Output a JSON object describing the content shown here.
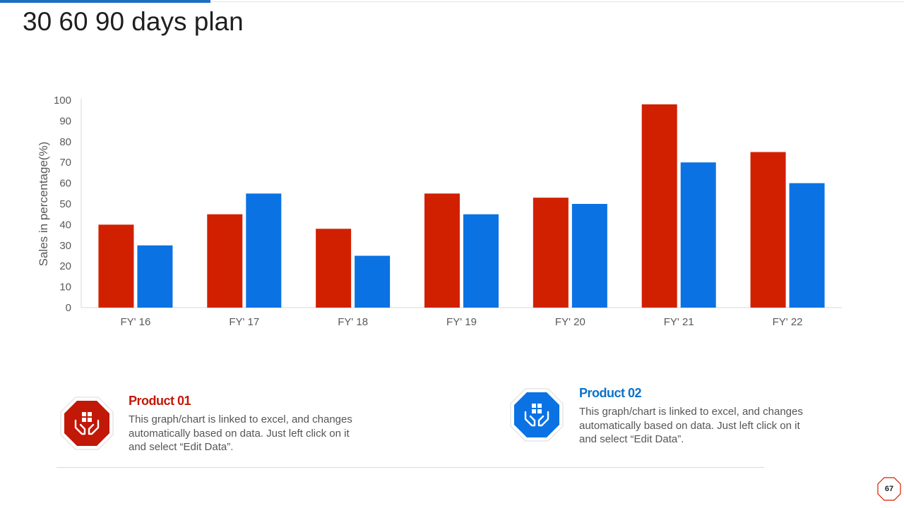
{
  "title": "30 60 90 days plan",
  "chart_data": {
    "type": "bar",
    "title": "",
    "xlabel": "",
    "ylabel": "Sales in percentage(%)",
    "ylim": [
      0,
      100
    ],
    "yticks": [
      0,
      10,
      20,
      30,
      40,
      50,
      60,
      70,
      80,
      90,
      100
    ],
    "categories": [
      "FY' 16",
      "FY' 17",
      "FY' 18",
      "FY' 19",
      "FY' 20",
      "FY' 21",
      "FY' 22"
    ],
    "series": [
      {
        "name": "Product 01",
        "color": "#d12000",
        "values": [
          40,
          45,
          38,
          55,
          53,
          98,
          75
        ]
      },
      {
        "name": "Product 02",
        "color": "#0b72e3",
        "values": [
          30,
          55,
          25,
          45,
          50,
          70,
          60
        ]
      }
    ],
    "grid": false,
    "legend": "none"
  },
  "products": [
    {
      "name": "Product 01",
      "color": "#c21807",
      "description": "This graph/chart is linked to excel, and changes automatically based on data. Just left click on it and select “Edit Data”.",
      "icon": "box-in-hands-icon"
    },
    {
      "name": "Product 02",
      "color": "#0b72c9",
      "description": "This graph/chart is linked to excel, and changes automatically based on data. Just left click on it and select “Edit Data”.",
      "icon": "box-in-hands-icon"
    }
  ],
  "page_number": "67",
  "colors": {
    "accent_blue": "#1f6fc1",
    "red": "#d12000",
    "blue": "#0b72e3"
  }
}
